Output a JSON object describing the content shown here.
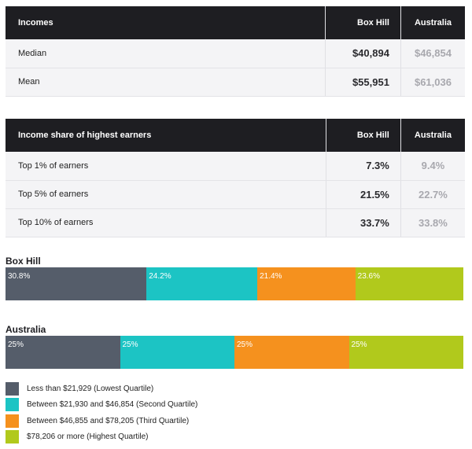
{
  "incomes_table": {
    "headers": [
      "Incomes",
      "Box Hill",
      "Australia"
    ],
    "rows": [
      {
        "label": "Median",
        "box_hill": "$40,894",
        "australia": "$46,854"
      },
      {
        "label": "Mean",
        "box_hill": "$55,951",
        "australia": "$61,036"
      }
    ]
  },
  "share_table": {
    "headers": [
      "Income share of highest earners",
      "Box Hill",
      "Australia"
    ],
    "rows": [
      {
        "label": "Top 1% of earners",
        "box_hill": "7.3%",
        "australia": "9.4%"
      },
      {
        "label": "Top 5% of earners",
        "box_hill": "21.5%",
        "australia": "22.7%"
      },
      {
        "label": "Top 10% of earners",
        "box_hill": "33.7%",
        "australia": "33.8%"
      }
    ]
  },
  "colors": {
    "lowest": "#555d6a",
    "second": "#1cc4c4",
    "third": "#f5911e",
    "highest": "#b1c91c"
  },
  "chart_data": [
    {
      "type": "bar",
      "title": "Box Hill",
      "stacked": true,
      "orientation": "horizontal",
      "categories": [
        "Less than $21,929 (Lowest Quartile)",
        "Between $21,930 and $46,854 (Second Quartile)",
        "Between $46,855 and $78,205 (Third Quartile)",
        "$78,206 or more (Highest Quartile)"
      ],
      "values": [
        30.8,
        24.2,
        21.4,
        23.6
      ],
      "labels": [
        "30.8%",
        "24.2%",
        "21.4%",
        "23.6%"
      ]
    },
    {
      "type": "bar",
      "title": "Australia",
      "stacked": true,
      "orientation": "horizontal",
      "categories": [
        "Less than $21,929 (Lowest Quartile)",
        "Between $21,930 and $46,854 (Second Quartile)",
        "Between $46,855 and $78,205 (Third Quartile)",
        "$78,206 or more (Highest Quartile)"
      ],
      "values": [
        25,
        25,
        25,
        25
      ],
      "labels": [
        "25%",
        "25%",
        "25%",
        "25%"
      ]
    }
  ],
  "legend": [
    {
      "key": "lowest",
      "label": "Less than $21,929 (Lowest Quartile)"
    },
    {
      "key": "second",
      "label": "Between $21,930 and $46,854 (Second Quartile)"
    },
    {
      "key": "third",
      "label": "Between $46,855 and $78,205 (Third Quartile)"
    },
    {
      "key": "highest",
      "label": "$78,206 or more (Highest Quartile)"
    }
  ]
}
